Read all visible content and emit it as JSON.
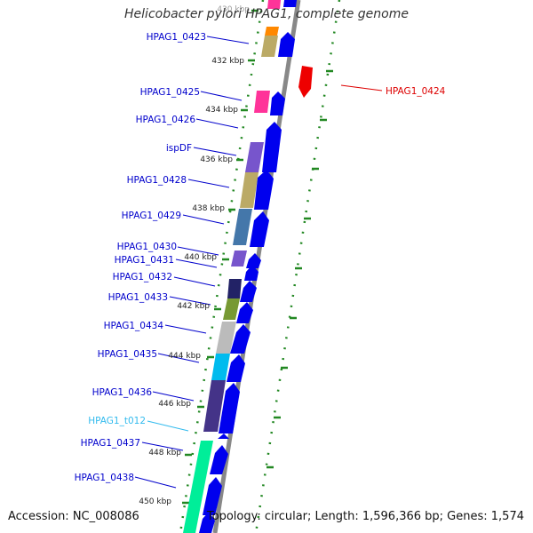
{
  "title": "Helicobacter pylori HPAG1, complete genome",
  "footer": {
    "accession": "Accession: NC_008086",
    "summary": "Topology: circular; Length: 1,596,366 bp; Genes: 1,574"
  },
  "colors": {
    "gene_label": "#0000cc",
    "trna_label": "#33bbee",
    "reverse_label": "#dd0000",
    "cds_arrow": "#0000ee",
    "reverse_arrow": "#ee0000",
    "backbone": "#888888",
    "tick_dots": "#228822"
  },
  "scale_labels": [
    "430 kbp",
    "432 kbp",
    "434 kbp",
    "436 kbp",
    "438 kbp",
    "440 kbp",
    "442 kbp",
    "444 kbp",
    "446 kbp",
    "448 kbp",
    "450 kbp"
  ],
  "gene_labels": [
    {
      "text": "HPAG1_0423",
      "kind": "gene"
    },
    {
      "text": "HPAG1_0425",
      "kind": "gene"
    },
    {
      "text": "HPAG1_0426",
      "kind": "gene"
    },
    {
      "text": "ispDF",
      "kind": "gene"
    },
    {
      "text": "HPAG1_0428",
      "kind": "gene"
    },
    {
      "text": "HPAG1_0429",
      "kind": "gene"
    },
    {
      "text": "HPAG1_0430",
      "kind": "gene"
    },
    {
      "text": "HPAG1_0431",
      "kind": "gene"
    },
    {
      "text": "HPAG1_0432",
      "kind": "gene"
    },
    {
      "text": "HPAG1_0433",
      "kind": "gene"
    },
    {
      "text": "HPAG1_0434",
      "kind": "gene"
    },
    {
      "text": "HPAG1_0435",
      "kind": "gene"
    },
    {
      "text": "HPAG1_0436",
      "kind": "gene"
    },
    {
      "text": "HPAG1_t012",
      "kind": "trna"
    },
    {
      "text": "HPAG1_0437",
      "kind": "gene"
    },
    {
      "text": "HPAG1_0438",
      "kind": "gene"
    }
  ],
  "reverse_labels": [
    {
      "text": "HPAG1_0424",
      "kind": "reverse"
    }
  ]
}
